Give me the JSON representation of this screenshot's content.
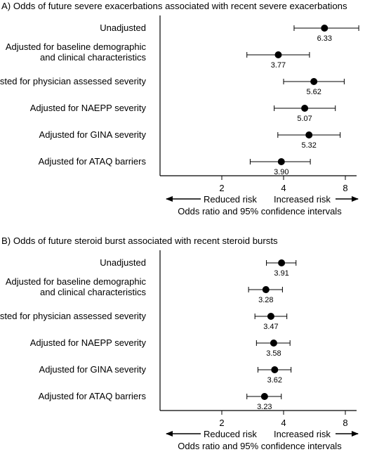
{
  "chart_data": [
    {
      "type": "forest",
      "title": "A) Odds of future severe exacerbations associated with recent severe exacerbations",
      "xlabel": "Odds ratio and 95% confidence intervals",
      "x_scale": "log2",
      "xlim": [
        1,
        10
      ],
      "ticks": [
        2,
        4,
        8
      ],
      "tick_labels": [
        "2",
        "4",
        "8"
      ],
      "reference_line": 1,
      "left_arrow_label": "Reduced risk",
      "right_arrow_label": "Increased risk",
      "rows": [
        {
          "label": "Unadjusted",
          "value": 6.33,
          "ci": [
            4.5,
            9.3
          ],
          "value_label": "6.33"
        },
        {
          "label": "Adjusted for baseline demographic and clinical characteristics",
          "value": 3.77,
          "ci": [
            2.65,
            5.35
          ],
          "value_label": "3.77"
        },
        {
          "label": "Adjusted for physician assessed severity",
          "value": 5.62,
          "ci": [
            4.0,
            7.9
          ],
          "value_label": "5.62"
        },
        {
          "label": "Adjusted for NAEPP severity",
          "value": 5.07,
          "ci": [
            3.6,
            7.15
          ],
          "value_label": "5.07"
        },
        {
          "label": "Adjusted for GINA severity",
          "value": 5.32,
          "ci": [
            3.75,
            7.55
          ],
          "value_label": "5.32"
        },
        {
          "label": "Adjusted for ATAQ barriers",
          "value": 3.9,
          "ci": [
            2.75,
            5.4
          ],
          "value_label": "3.90"
        }
      ]
    },
    {
      "type": "forest",
      "title": "B) Odds of future steroid burst associated with recent steroid bursts",
      "xlabel": "Odds ratio and 95% confidence intervals",
      "x_scale": "log2",
      "xlim": [
        1,
        10
      ],
      "ticks": [
        2,
        4,
        8
      ],
      "tick_labels": [
        "2",
        "4",
        "8"
      ],
      "reference_line": 1,
      "left_arrow_label": "Reduced risk",
      "right_arrow_label": "Increased risk",
      "rows": [
        {
          "label": "Unadjusted",
          "value": 3.91,
          "ci": [
            3.3,
            4.6
          ],
          "value_label": "3.91"
        },
        {
          "label": "Adjusted for baseline demographic and clinical characteristics",
          "value": 3.28,
          "ci": [
            2.7,
            3.95
          ],
          "value_label": "3.28"
        },
        {
          "label": "Adjusted for physician assessed severity",
          "value": 3.47,
          "ci": [
            2.9,
            4.15
          ],
          "value_label": "3.47"
        },
        {
          "label": "Adjusted for NAEPP severity",
          "value": 3.58,
          "ci": [
            2.95,
            4.3
          ],
          "value_label": "3.58"
        },
        {
          "label": "Adjusted for GINA severity",
          "value": 3.62,
          "ci": [
            3.0,
            4.35
          ],
          "value_label": "3.62"
        },
        {
          "label": "Adjusted for ATAQ barriers",
          "value": 3.23,
          "ci": [
            2.65,
            3.9
          ],
          "value_label": "3.23"
        }
      ]
    }
  ]
}
